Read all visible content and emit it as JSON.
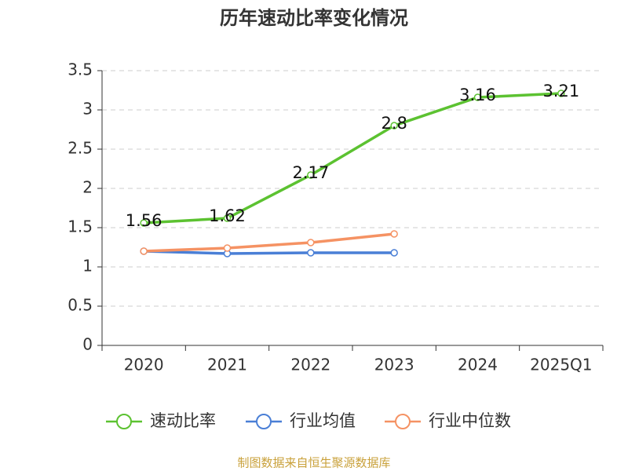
{
  "chart_data": {
    "type": "line",
    "title": "历年速动比率变化情况",
    "categories": [
      "2020",
      "2021",
      "2022",
      "2023",
      "2024",
      "2025Q1"
    ],
    "series": [
      {
        "name": "速动比率",
        "color": "#5cc231",
        "values": [
          1.56,
          1.62,
          2.17,
          2.8,
          3.16,
          3.21
        ],
        "data_labels": true
      },
      {
        "name": "行业均值",
        "color": "#4a7fd6",
        "values": [
          1.2,
          1.17,
          1.18,
          1.18,
          null,
          null
        ]
      },
      {
        "name": "行业中位数",
        "color": "#f59263",
        "values": [
          1.2,
          1.24,
          1.31,
          1.42,
          null,
          null
        ]
      }
    ],
    "ylim": [
      0,
      3.5
    ],
    "yticks": [
      0,
      0.5,
      1,
      1.5,
      2,
      2.5,
      3,
      3.5
    ],
    "grid": true,
    "source": "制图数据来自恒生聚源数据库"
  }
}
